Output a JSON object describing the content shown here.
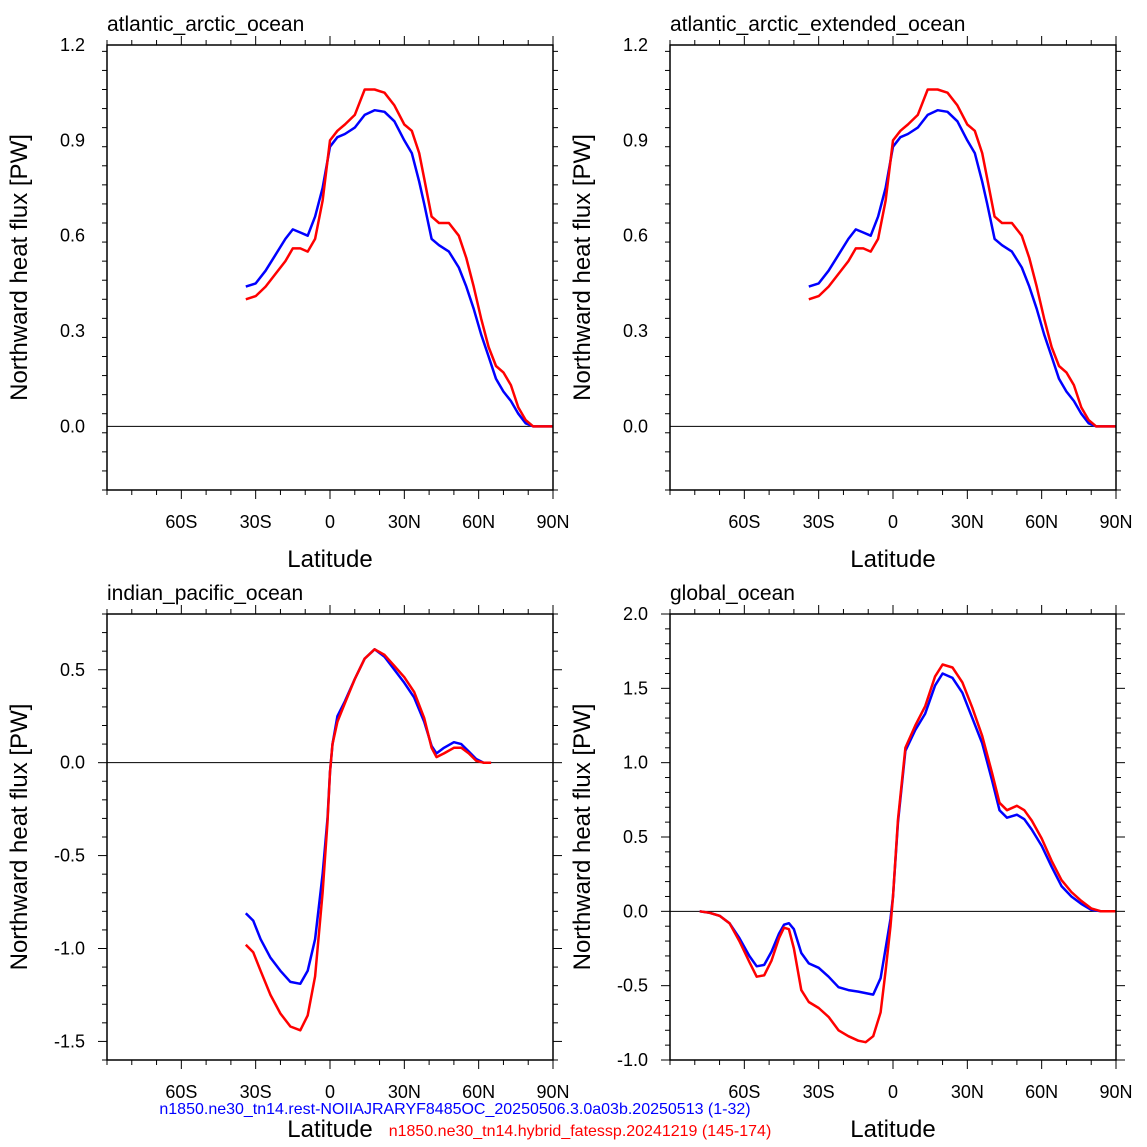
{
  "chart_data": [
    {
      "type": "line",
      "title": "atlantic_arctic_ocean",
      "xlabel": "Latitude",
      "ylabel": "Northward heat flux [PW]",
      "xlim": [
        -90,
        90
      ],
      "ylim": [
        -0.2,
        1.2
      ],
      "xticks": [
        -60,
        -30,
        0,
        30,
        60,
        90
      ],
      "xticklabels": [
        "60S",
        "30S",
        "0",
        "30N",
        "60N",
        "90N"
      ],
      "yticks": [
        0.0,
        0.3,
        0.6,
        0.9,
        1.2
      ],
      "yticklabels": [
        "0.0",
        "0.3",
        "0.6",
        "0.9",
        "1.2"
      ],
      "zero_line": true,
      "series": [
        {
          "color": "#0000ff",
          "x": [
            -34,
            -30,
            -26,
            -22,
            -18,
            -15,
            -12,
            -9,
            -6,
            -3,
            0,
            3,
            6,
            10,
            14,
            18,
            22,
            26,
            30,
            33,
            36,
            38,
            41,
            44,
            48,
            52,
            55,
            58,
            61,
            64,
            67,
            70,
            73,
            76,
            79,
            82,
            86,
            90
          ],
          "y": [
            0.44,
            0.45,
            0.49,
            0.54,
            0.59,
            0.62,
            0.61,
            0.6,
            0.66,
            0.75,
            0.88,
            0.91,
            0.92,
            0.94,
            0.98,
            0.995,
            0.99,
            0.96,
            0.9,
            0.86,
            0.77,
            0.7,
            0.59,
            0.57,
            0.55,
            0.5,
            0.44,
            0.37,
            0.29,
            0.22,
            0.15,
            0.11,
            0.08,
            0.04,
            0.01,
            0.0,
            0.0,
            0.0
          ]
        },
        {
          "color": "#ff0000",
          "x": [
            -34,
            -30,
            -26,
            -22,
            -18,
            -15,
            -12,
            -9,
            -6,
            -3,
            0,
            3,
            6,
            10,
            14,
            18,
            22,
            26,
            30,
            33,
            36,
            38,
            41,
            44,
            48,
            52,
            55,
            58,
            61,
            64,
            67,
            70,
            73,
            76,
            79,
            82,
            86,
            90
          ],
          "y": [
            0.4,
            0.41,
            0.44,
            0.48,
            0.52,
            0.56,
            0.56,
            0.55,
            0.59,
            0.71,
            0.9,
            0.93,
            0.95,
            0.98,
            1.06,
            1.06,
            1.05,
            1.01,
            0.95,
            0.93,
            0.86,
            0.78,
            0.66,
            0.64,
            0.64,
            0.6,
            0.53,
            0.44,
            0.34,
            0.25,
            0.19,
            0.17,
            0.13,
            0.06,
            0.02,
            0.0,
            0.0,
            0.0
          ]
        }
      ]
    },
    {
      "type": "line",
      "title": "atlantic_arctic_extended_ocean",
      "xlabel": "Latitude",
      "ylabel": "Northward heat flux [PW]",
      "xlim": [
        -90,
        90
      ],
      "ylim": [
        -0.2,
        1.2
      ],
      "xticks": [
        -60,
        -30,
        0,
        30,
        60,
        90
      ],
      "xticklabels": [
        "60S",
        "30S",
        "0",
        "30N",
        "60N",
        "90N"
      ],
      "yticks": [
        0.0,
        0.3,
        0.6,
        0.9,
        1.2
      ],
      "yticklabels": [
        "0.0",
        "0.3",
        "0.6",
        "0.9",
        "1.2"
      ],
      "zero_line": true,
      "series": [
        {
          "color": "#0000ff",
          "x": [
            -34,
            -30,
            -26,
            -22,
            -18,
            -15,
            -12,
            -9,
            -6,
            -3,
            0,
            3,
            6,
            10,
            14,
            18,
            22,
            26,
            30,
            33,
            36,
            38,
            41,
            44,
            48,
            52,
            55,
            58,
            61,
            64,
            67,
            70,
            73,
            76,
            79,
            82,
            86,
            90
          ],
          "y": [
            0.44,
            0.45,
            0.49,
            0.54,
            0.59,
            0.62,
            0.61,
            0.6,
            0.66,
            0.75,
            0.88,
            0.91,
            0.92,
            0.94,
            0.98,
            0.995,
            0.99,
            0.96,
            0.9,
            0.86,
            0.77,
            0.7,
            0.59,
            0.57,
            0.55,
            0.5,
            0.44,
            0.37,
            0.29,
            0.22,
            0.15,
            0.11,
            0.08,
            0.04,
            0.01,
            0.0,
            0.0,
            0.0
          ]
        },
        {
          "color": "#ff0000",
          "x": [
            -34,
            -30,
            -26,
            -22,
            -18,
            -15,
            -12,
            -9,
            -6,
            -3,
            0,
            3,
            6,
            10,
            14,
            18,
            22,
            26,
            30,
            33,
            36,
            38,
            41,
            44,
            48,
            52,
            55,
            58,
            61,
            64,
            67,
            70,
            73,
            76,
            79,
            82,
            86,
            90
          ],
          "y": [
            0.4,
            0.41,
            0.44,
            0.48,
            0.52,
            0.56,
            0.56,
            0.55,
            0.59,
            0.71,
            0.9,
            0.93,
            0.95,
            0.98,
            1.06,
            1.06,
            1.05,
            1.01,
            0.95,
            0.93,
            0.86,
            0.78,
            0.66,
            0.64,
            0.64,
            0.6,
            0.53,
            0.44,
            0.34,
            0.25,
            0.19,
            0.17,
            0.13,
            0.06,
            0.02,
            0.0,
            0.0,
            0.0
          ]
        }
      ]
    },
    {
      "type": "line",
      "title": "indian_pacific_ocean",
      "xlabel": "Latitude",
      "ylabel": "Northward heat flux [PW]",
      "xlim": [
        -90,
        90
      ],
      "ylim": [
        -1.6,
        0.8
      ],
      "xticks": [
        -60,
        -30,
        0,
        30,
        60,
        90
      ],
      "xticklabels": [
        "60S",
        "30S",
        "0",
        "30N",
        "60N",
        "90N"
      ],
      "yticks": [
        -1.5,
        -1.0,
        -0.5,
        0.0,
        0.5
      ],
      "yticklabels": [
        "-1.5",
        "-1.0",
        "-0.5",
        "0.0",
        "0.5"
      ],
      "zero_line": true,
      "series": [
        {
          "color": "#0000ff",
          "x": [
            -34,
            -31,
            -28,
            -24,
            -20,
            -16,
            -12,
            -9,
            -6,
            -3,
            -1,
            0,
            1,
            3,
            6,
            10,
            14,
            18,
            22,
            26,
            30,
            34,
            38,
            41,
            43,
            46,
            50,
            53,
            56,
            59,
            62,
            65
          ],
          "y": [
            -0.81,
            -0.85,
            -0.95,
            -1.05,
            -1.12,
            -1.18,
            -1.19,
            -1.12,
            -0.95,
            -0.6,
            -0.3,
            -0.05,
            0.1,
            0.25,
            0.33,
            0.45,
            0.56,
            0.61,
            0.57,
            0.5,
            0.43,
            0.35,
            0.22,
            0.09,
            0.05,
            0.08,
            0.11,
            0.1,
            0.06,
            0.02,
            0.0,
            0.0
          ]
        },
        {
          "color": "#ff0000",
          "x": [
            -34,
            -31,
            -28,
            -24,
            -20,
            -16,
            -12,
            -9,
            -6,
            -3,
            -1,
            0,
            1,
            3,
            6,
            10,
            14,
            18,
            22,
            26,
            30,
            34,
            38,
            41,
            43,
            46,
            50,
            53,
            56,
            59,
            62,
            65
          ],
          "y": [
            -0.98,
            -1.02,
            -1.12,
            -1.25,
            -1.35,
            -1.42,
            -1.44,
            -1.36,
            -1.15,
            -0.7,
            -0.32,
            -0.05,
            0.1,
            0.22,
            0.32,
            0.45,
            0.56,
            0.61,
            0.58,
            0.52,
            0.46,
            0.38,
            0.24,
            0.08,
            0.03,
            0.05,
            0.08,
            0.08,
            0.05,
            0.01,
            0.0,
            0.0
          ]
        }
      ]
    },
    {
      "type": "line",
      "title": "global_ocean",
      "xlabel": "Latitude",
      "ylabel": "Northward heat flux [PW]",
      "xlim": [
        -90,
        90
      ],
      "ylim": [
        -1.0,
        2.0
      ],
      "xticks": [
        -60,
        -30,
        0,
        30,
        60,
        90
      ],
      "xticklabels": [
        "60S",
        "30S",
        "0",
        "30N",
        "60N",
        "90N"
      ],
      "yticks": [
        -1.0,
        -0.5,
        0.0,
        0.5,
        1.0,
        1.5,
        2.0
      ],
      "yticklabels": [
        "-1.0",
        "-0.5",
        "0.0",
        "0.5",
        "1.0",
        "1.5",
        "2.0"
      ],
      "zero_line": true,
      "series": [
        {
          "color": "#0000ff",
          "x": [
            -78,
            -74,
            -70,
            -66,
            -62,
            -58,
            -55,
            -52,
            -49,
            -46,
            -44,
            -42,
            -40,
            -37,
            -34,
            -30,
            -26,
            -22,
            -18,
            -14,
            -11,
            -8,
            -5,
            -3,
            -1,
            0,
            2,
            5,
            9,
            13,
            17,
            20,
            24,
            28,
            32,
            36,
            40,
            43,
            46,
            50,
            53,
            56,
            60,
            64,
            68,
            72,
            76,
            80,
            84,
            90
          ],
          "y": [
            0.0,
            -0.01,
            -0.03,
            -0.08,
            -0.18,
            -0.3,
            -0.37,
            -0.36,
            -0.27,
            -0.15,
            -0.09,
            -0.08,
            -0.12,
            -0.28,
            -0.35,
            -0.38,
            -0.44,
            -0.51,
            -0.53,
            -0.54,
            -0.55,
            -0.56,
            -0.45,
            -0.25,
            -0.05,
            0.1,
            0.6,
            1.08,
            1.22,
            1.33,
            1.52,
            1.6,
            1.57,
            1.47,
            1.3,
            1.13,
            0.88,
            0.68,
            0.63,
            0.65,
            0.62,
            0.55,
            0.44,
            0.3,
            0.17,
            0.1,
            0.05,
            0.01,
            0.0,
            0.0
          ]
        },
        {
          "color": "#ff0000",
          "x": [
            -78,
            -74,
            -70,
            -66,
            -62,
            -58,
            -55,
            -52,
            -49,
            -46,
            -44,
            -42,
            -40,
            -37,
            -34,
            -30,
            -26,
            -22,
            -18,
            -14,
            -11,
            -8,
            -5,
            -3,
            -1,
            0,
            2,
            5,
            9,
            13,
            17,
            20,
            24,
            28,
            32,
            36,
            40,
            43,
            46,
            50,
            53,
            56,
            60,
            64,
            68,
            72,
            76,
            80,
            84,
            90
          ],
          "y": [
            0.0,
            -0.01,
            -0.03,
            -0.08,
            -0.2,
            -0.34,
            -0.44,
            -0.43,
            -0.33,
            -0.18,
            -0.11,
            -0.12,
            -0.25,
            -0.53,
            -0.61,
            -0.65,
            -0.71,
            -0.8,
            -0.84,
            -0.87,
            -0.88,
            -0.84,
            -0.68,
            -0.4,
            -0.1,
            0.1,
            0.62,
            1.1,
            1.25,
            1.38,
            1.58,
            1.66,
            1.64,
            1.54,
            1.37,
            1.18,
            0.93,
            0.73,
            0.68,
            0.71,
            0.68,
            0.61,
            0.49,
            0.34,
            0.21,
            0.13,
            0.07,
            0.02,
            0.0,
            0.0
          ]
        }
      ]
    }
  ],
  "legend": [
    {
      "text": "n1850.ne30_tn14.rest-NOIIAJRARYF8485OC_20250506.3.0a03b.20250513 (1-32)",
      "color": "#0000ff"
    },
    {
      "text": "n1850.ne30_tn14.hybrid_fatessp.20241219 (145-174)",
      "color": "#ff0000"
    }
  ]
}
